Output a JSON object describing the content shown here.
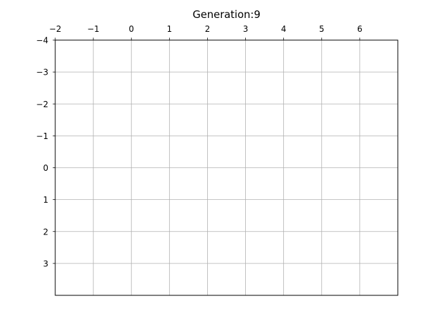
{
  "figure": {
    "title_prefix": "Generation:",
    "generation": 9,
    "title": "Generation:9"
  },
  "chart_data": {
    "type": "scatter",
    "title": "Generation:9",
    "x_axis": {
      "position": "top",
      "range": [
        -2,
        7
      ],
      "ticks": [
        -2,
        -1,
        0,
        1,
        2,
        3,
        4,
        5,
        6
      ],
      "tick_labels": [
        "−2",
        "−1",
        "0",
        "1",
        "2",
        "3",
        "4",
        "5",
        "6"
      ]
    },
    "y_axis": {
      "inverted": true,
      "range": [
        -4,
        4
      ],
      "ticks": [
        -4,
        -3,
        -2,
        -1,
        0,
        1,
        2,
        3
      ],
      "tick_labels": [
        "−4",
        "−3",
        "−2",
        "−1",
        "0",
        "1",
        "2",
        "3"
      ]
    },
    "grid": true,
    "live_cells": []
  },
  "colors": {
    "grid": "#b0b0b0",
    "axes": "#000000",
    "background": "#ffffff"
  }
}
